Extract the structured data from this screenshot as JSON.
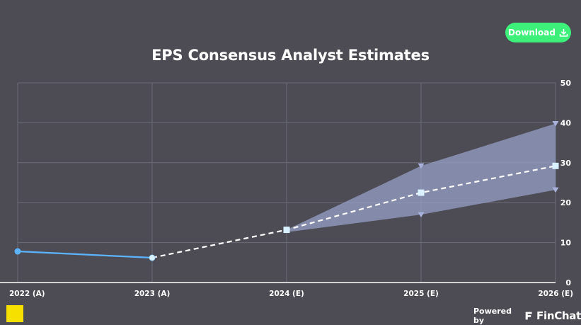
{
  "header": {
    "download_label": "Download",
    "download_icon": "download-icon"
  },
  "footer": {
    "logo_text": "",
    "powered_by": "Powered by",
    "brand_name": "FinChat",
    "brand_icon": "finchat-logo-icon"
  },
  "colors": {
    "background": "#4d4c55",
    "actual_line": "#5cb4ff",
    "estimate_line": "#ffffff",
    "band_fill": "#9aa3cc",
    "download_button": "#3cf07a"
  },
  "chart_data": {
    "type": "line",
    "title": "EPS Consensus Analyst Estimates",
    "xlabel": "",
    "ylabel": "",
    "categories": [
      "2022 (A)",
      "2023 (A)",
      "2024 (E)",
      "2025 (E)",
      "2026 (E)"
    ],
    "yticks": [
      10,
      20,
      30,
      40,
      50
    ],
    "ylim": [
      0,
      50
    ],
    "y_axis_position": "right",
    "grid": true,
    "actual": [
      7.8,
      6.2,
      null,
      null,
      null
    ],
    "consensus": [
      null,
      6.2,
      13.2,
      22.5,
      29.2
    ],
    "high": [
      null,
      null,
      13.2,
      29.2,
      39.8
    ],
    "low": [
      null,
      null,
      12.6,
      17.0,
      23.2
    ]
  }
}
